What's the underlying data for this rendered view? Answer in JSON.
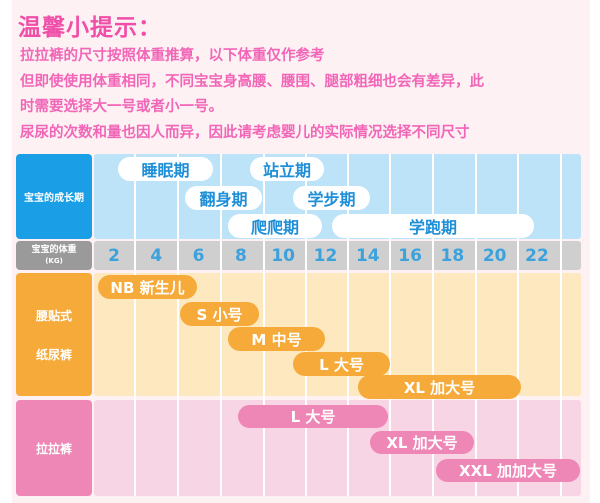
{
  "tips": {
    "title": "温馨小提示：",
    "lines": [
      "拉拉裤的尺寸按照体重推算，以下体重仅作参考",
      "但即使使用体重相同，不同宝宝身高腰、腰围、腿部粗细也会有差异，此",
      "时需要选择大一号或者小一号。",
      "尿尿的次数和量也因人而异，因此请考虑婴儿的实际情况选择不同尺寸"
    ]
  },
  "chart": {
    "growth_label": "宝宝的成长期",
    "weight_label": "宝宝的体重",
    "weight_unit": "(KG)",
    "weights": [
      "2",
      "4",
      "6",
      "8",
      "10",
      "12",
      "14",
      "16",
      "18",
      "20",
      "22"
    ],
    "stages": [
      "睡眠期",
      "站立期",
      "翻身期",
      "学步期",
      "爬爬期",
      "学跑期"
    ],
    "diaper_label_1": "腰贴式",
    "diaper_label_2": "纸尿裤",
    "diaper_sizes": [
      "NB 新生儿",
      "S 小号",
      "M 中号",
      "L 大号",
      "XL 加大号"
    ],
    "pullup_label": "拉拉裤",
    "pullup_sizes": [
      "L 大号",
      "XL 加大号",
      "XXL 加加大号"
    ]
  },
  "colors": {
    "growth": "#1a9ee6",
    "weight": "#9a9a9a",
    "diaper": "#f6aa3a",
    "pullup": "#ee86b6",
    "tip_text": "#f04fa9"
  }
}
